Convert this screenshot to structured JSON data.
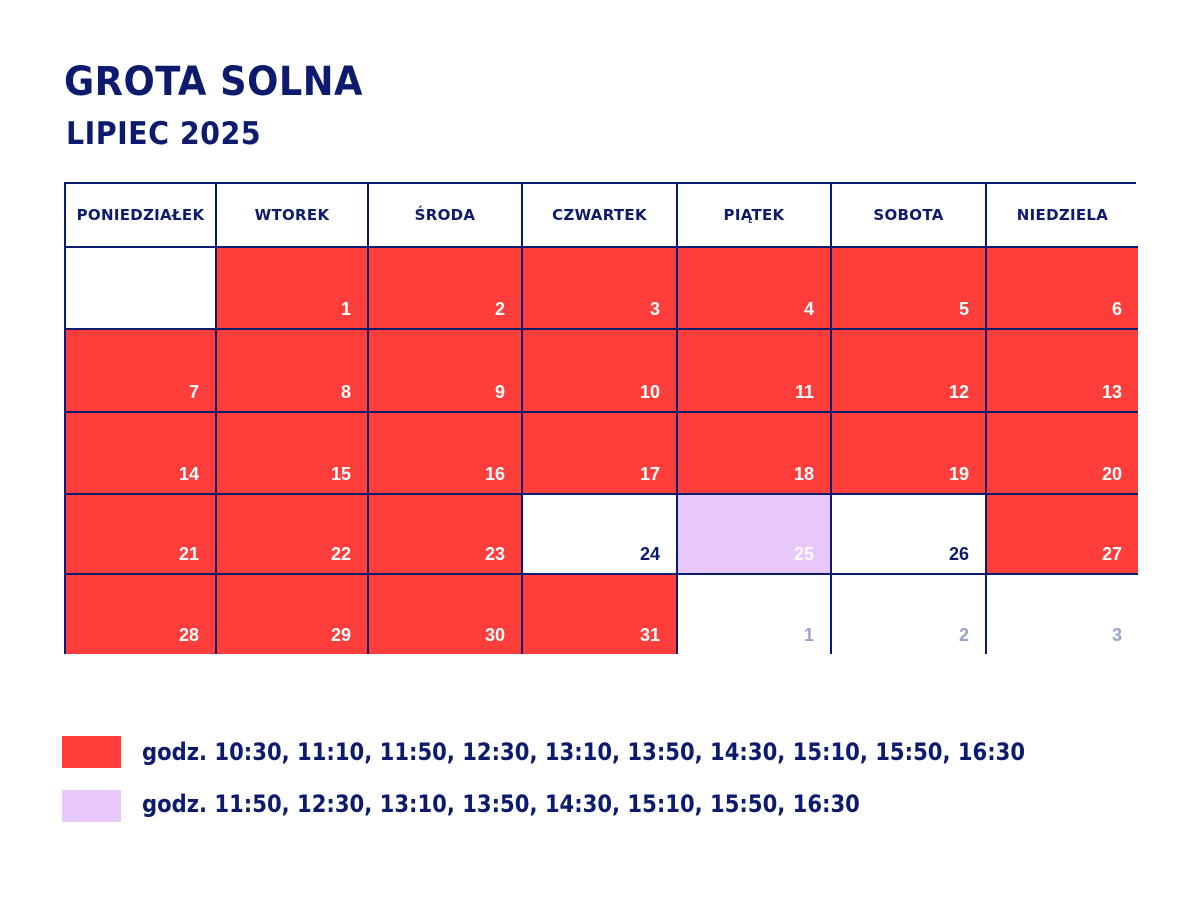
{
  "title": "GROTA SOLNA",
  "subtitle": "LIPIEC 2025",
  "colors": {
    "navy": "#0d1b6e",
    "red": "#ff3d3a",
    "lilac": "#e8c8fb",
    "muted": "#9aa3c8"
  },
  "weekdays": [
    "PONIEDZIAŁEK",
    "WTOREK",
    "ŚRODA",
    "CZWARTEK",
    "PIĄTEK",
    "SOBOTA",
    "NIEDZIELA"
  ],
  "weeks": [
    [
      {
        "day": "",
        "status": "white"
      },
      {
        "day": "1",
        "status": "red"
      },
      {
        "day": "2",
        "status": "red"
      },
      {
        "day": "3",
        "status": "red"
      },
      {
        "day": "4",
        "status": "red"
      },
      {
        "day": "5",
        "status": "red"
      },
      {
        "day": "6",
        "status": "red"
      }
    ],
    [
      {
        "day": "7",
        "status": "red"
      },
      {
        "day": "8",
        "status": "red"
      },
      {
        "day": "9",
        "status": "red"
      },
      {
        "day": "10",
        "status": "red"
      },
      {
        "day": "11",
        "status": "red"
      },
      {
        "day": "12",
        "status": "red"
      },
      {
        "day": "13",
        "status": "red"
      }
    ],
    [
      {
        "day": "14",
        "status": "red"
      },
      {
        "day": "15",
        "status": "red"
      },
      {
        "day": "16",
        "status": "red"
      },
      {
        "day": "17",
        "status": "red"
      },
      {
        "day": "18",
        "status": "red"
      },
      {
        "day": "19",
        "status": "red"
      },
      {
        "day": "20",
        "status": "red"
      }
    ],
    [
      {
        "day": "21",
        "status": "red"
      },
      {
        "day": "22",
        "status": "red"
      },
      {
        "day": "23",
        "status": "red"
      },
      {
        "day": "24",
        "status": "white"
      },
      {
        "day": "25",
        "status": "lilac"
      },
      {
        "day": "26",
        "status": "white"
      },
      {
        "day": "27",
        "status": "red"
      }
    ],
    [
      {
        "day": "28",
        "status": "red"
      },
      {
        "day": "29",
        "status": "red"
      },
      {
        "day": "30",
        "status": "red"
      },
      {
        "day": "31",
        "status": "red"
      },
      {
        "day": "1",
        "status": "muted"
      },
      {
        "day": "2",
        "status": "muted"
      },
      {
        "day": "3",
        "status": "muted"
      }
    ]
  ],
  "legend": [
    {
      "color": "#ff3d3a",
      "text": "godz. 10:30, 11:10, 11:50, 12:30, 13:10, 13:50, 14:30, 15:10, 15:50, 16:30"
    },
    {
      "color": "#e8c8fb",
      "text": "godz. 11:50, 12:30, 13:10, 13:50, 14:30, 15:10, 15:50, 16:30"
    }
  ]
}
